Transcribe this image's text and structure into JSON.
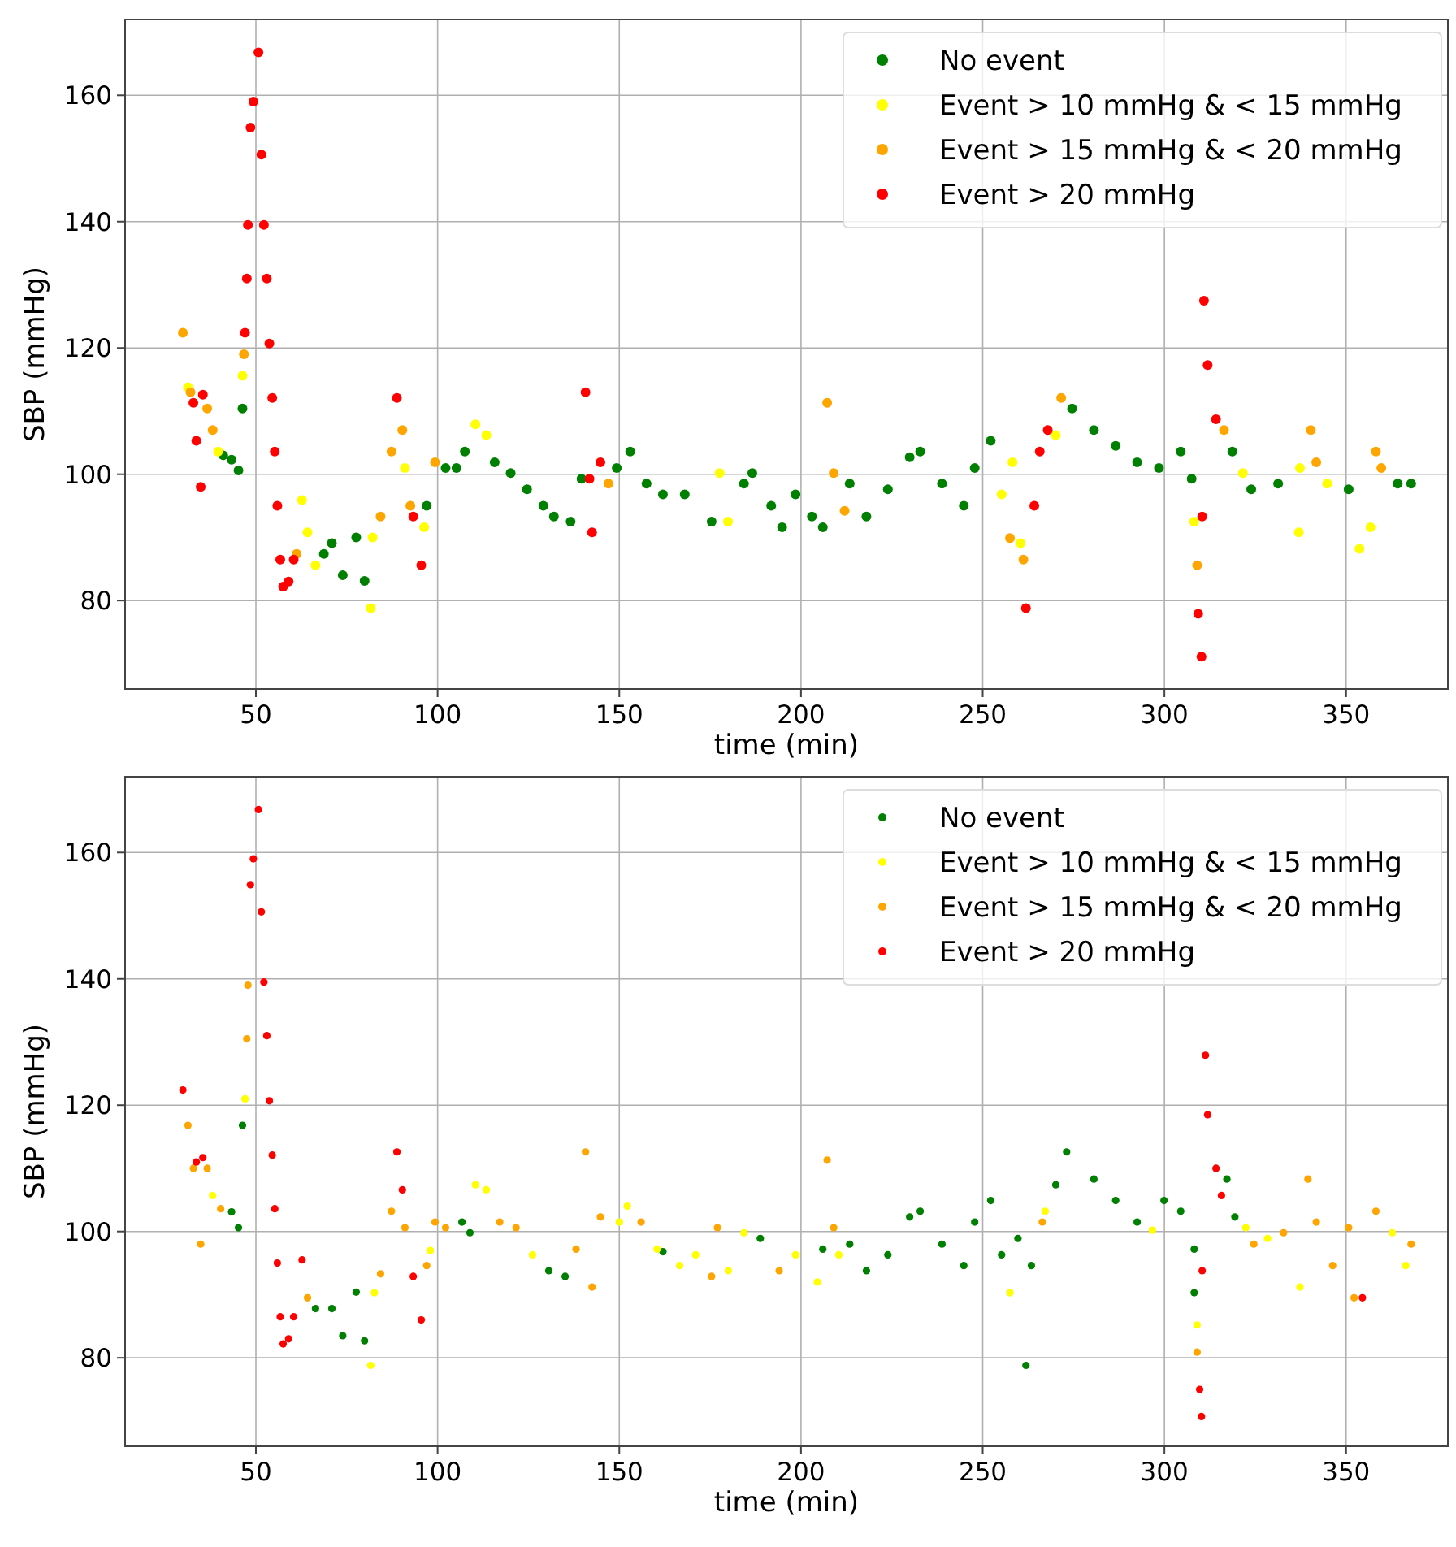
{
  "chart_data": [
    {
      "type": "scatter",
      "xlabel": "time (min)",
      "ylabel": "SBP (mmHg)",
      "xlim": [
        14,
        378
      ],
      "ylim": [
        66,
        172
      ],
      "xticks": [
        50,
        100,
        150,
        200,
        250,
        300,
        350
      ],
      "yticks": [
        80,
        100,
        120,
        140,
        160
      ],
      "grid": true,
      "legend": "top right",
      "marker": "circle",
      "series": [
        {
          "name": "No event",
          "color": "#008000",
          "x": [
            41,
            43.3,
            45.2,
            46.3,
            68.7,
            70.9,
            73.9,
            77.6,
            79.9,
            97,
            102.2,
            105.2,
            107.5,
            115.7,
            120.1,
            124.6,
            129.1,
            132,
            136.6,
            139.6,
            149.3,
            153,
            157.5,
            162,
            168,
            175.4,
            184.3,
            186.6,
            191.8,
            194.8,
            198.5,
            203,
            206,
            213.4,
            218,
            223.9,
            229.9,
            232.8,
            238.8,
            244.8,
            247.8,
            252.2,
            274.6,
            280.6,
            286.6,
            292.5,
            298.5,
            304.5,
            307.5,
            318.7,
            323.9,
            331.3,
            350.7,
            364.2,
            367.9
          ],
          "values": [
            103,
            102.3,
            100.6,
            110.4,
            87.4,
            89.1,
            84,
            90,
            83.1,
            95,
            101,
            101,
            103.6,
            101.9,
            100.2,
            97.6,
            95,
            93.3,
            92.5,
            99.3,
            101,
            103.6,
            98.5,
            96.8,
            96.8,
            92.5,
            98.5,
            100.2,
            95,
            91.6,
            96.8,
            93.3,
            91.6,
            98.5,
            93.3,
            97.6,
            102.7,
            103.6,
            98.5,
            95,
            101,
            105.3,
            110.4,
            107,
            104.5,
            101.9,
            101,
            103.6,
            99.3,
            103.6,
            97.6,
            98.5,
            97.6,
            98.5,
            98.5
          ]
        },
        {
          "name": "Event > 10 mmHg & < 15 mmHg",
          "color": "#ffff00",
          "x": [
            31.3,
            39.6,
            46.3,
            62.7,
            64.2,
            66.4,
            81.6,
            82.1,
            91,
            96.3,
            110.4,
            113.4,
            177.6,
            179.9,
            255.2,
            258.2,
            260.4,
            270.1,
            308.2,
            321.6,
            337.3,
            337,
            344.8,
            353.7,
            356.7
          ],
          "values": [
            113.8,
            103.6,
            115.6,
            95.9,
            90.8,
            85.6,
            78.8,
            90,
            101,
            91.6,
            107.9,
            106.2,
            100.2,
            92.5,
            96.8,
            101.9,
            89.1,
            106.2,
            92.5,
            100.2,
            101,
            90.8,
            98.5,
            88.2,
            91.6
          ]
        },
        {
          "name": "Event > 15 mmHg & < 20 mmHg",
          "color": "#ffa500",
          "x": [
            29.9,
            32,
            36.6,
            38.1,
            46.7,
            61.2,
            84.3,
            87.3,
            90.3,
            92.5,
            99.3,
            147,
            207.2,
            209,
            212,
            257.5,
            261.2,
            271.6,
            309,
            316.4,
            340.3,
            341.8,
            358.2,
            359.7
          ],
          "values": [
            122.4,
            113,
            110.4,
            107,
            119,
            87.4,
            93.3,
            103.6,
            107,
            95,
            101.9,
            98.5,
            111.3,
            100.2,
            94.2,
            89.9,
            86.5,
            112.1,
            85.6,
            107,
            107,
            101.9,
            103.6,
            101
          ]
        },
        {
          "name": "Event > 20 mmHg",
          "color": "#ff0000",
          "x": [
            32.8,
            33.6,
            34.8,
            35.4,
            47,
            47.5,
            47.8,
            48.5,
            49.3,
            50.7,
            51.5,
            52.2,
            53,
            53.7,
            54.5,
            55.2,
            55.9,
            56.7,
            57.5,
            59,
            60.4,
            88.8,
            93.3,
            95.5,
            140.7,
            141.8,
            142.5,
            144.8,
            261.9,
            264.2,
            265.7,
            267.9,
            309.3,
            310.2,
            310.4,
            310.9,
            311.9,
            314.2
          ],
          "values": [
            111.3,
            105.3,
            98,
            112.6,
            122.4,
            131,
            139.5,
            154.9,
            159,
            166.8,
            150.6,
            139.5,
            131,
            120.7,
            112.1,
            103.6,
            95,
            86.5,
            82.2,
            83,
            86.5,
            112.1,
            93.3,
            85.6,
            113,
            99.3,
            90.8,
            101.9,
            78.8,
            95,
            103.6,
            107,
            77.9,
            71.1,
            93.3,
            127.5,
            117.3,
            108.7
          ]
        }
      ]
    },
    {
      "type": "scatter",
      "xlabel": "time (min)",
      "ylabel": "SBP (mmHg)",
      "xlim": [
        14,
        378
      ],
      "ylim": [
        66,
        172
      ],
      "xticks": [
        50,
        100,
        150,
        200,
        250,
        300,
        350
      ],
      "yticks": [
        80,
        100,
        120,
        140,
        160
      ],
      "grid": true,
      "legend": "top right",
      "marker": "circle",
      "series": [
        {
          "name": "No event",
          "color": "#008000",
          "x": [
            43.3,
            45.2,
            46.3,
            66.4,
            70.9,
            73.9,
            77.6,
            79.9,
            106.7,
            108.9,
            130.6,
            135.1,
            162,
            188.8,
            206,
            213.4,
            218,
            223.9,
            229.9,
            232.8,
            238.8,
            244.8,
            247.8,
            252.2,
            255.2,
            259.7,
            261.9,
            263.4,
            270.1,
            273.1,
            280.6,
            286.6,
            292.5,
            299.9,
            304.5,
            308.2,
            308.2,
            317.2,
            319.4
          ],
          "values": [
            103.1,
            100.6,
            116.8,
            87.8,
            87.8,
            83.5,
            90.4,
            82.7,
            101.5,
            99.8,
            93.8,
            92.9,
            96.8,
            98.9,
            97.2,
            98,
            93.8,
            96.3,
            102.3,
            103.2,
            98,
            94.6,
            101.5,
            104.9,
            96.3,
            98.9,
            78.8,
            94.6,
            107.4,
            112.6,
            108.3,
            104.9,
            101.5,
            104.9,
            103.2,
            97.2,
            90.3,
            108.3,
            102.3
          ]
        },
        {
          "name": "Event > 10 mmHg & < 15 mmHg",
          "color": "#ffff00",
          "x": [
            38.1,
            47,
            81.6,
            82.6,
            98,
            110.4,
            113.4,
            126.1,
            150,
            152.2,
            160.4,
            166.6,
            171,
            180,
            184.3,
            198.5,
            204.5,
            210.4,
            257.5,
            267.2,
            296.7,
            309,
            322.4,
            328.4,
            337.3,
            362.7,
            366.4
          ],
          "values": [
            105.7,
            121,
            78.8,
            90.3,
            97,
            107.4,
            106.6,
            96.3,
            101.5,
            104,
            97.2,
            94.6,
            96.3,
            93.8,
            99.8,
            96.3,
            92,
            96.3,
            90.3,
            103.2,
            100.2,
            85.2,
            100.6,
            98.9,
            91.2,
            99.8,
            94.6
          ]
        },
        {
          "name": "Event > 15 mmHg & < 20 mmHg",
          "color": "#ffa500",
          "x": [
            31.3,
            32.8,
            34.8,
            36.6,
            40.3,
            47.5,
            47.8,
            64.2,
            84.3,
            87.3,
            91,
            97,
            99.3,
            102.2,
            117.1,
            121.6,
            138.1,
            140.7,
            142.5,
            144.8,
            156,
            175.4,
            177,
            194,
            207.2,
            209,
            266.4,
            309,
            324.6,
            332.8,
            339.5,
            341.8,
            346.3,
            350.7,
            352.2,
            358.2,
            367.9
          ],
          "values": [
            116.8,
            110,
            98,
            110,
            103.6,
            130.5,
            139,
            89.5,
            93.3,
            103.2,
            100.6,
            94.6,
            101.5,
            100.6,
            101.5,
            100.6,
            97.2,
            112.6,
            91.2,
            102.3,
            101.5,
            92.9,
            100.6,
            93.8,
            111.3,
            100.6,
            101.5,
            80.9,
            98,
            99.8,
            108.3,
            101.5,
            94.6,
            100.6,
            89.5,
            103.2,
            98
          ]
        },
        {
          "name": "Event > 20 mmHg",
          "color": "#ff0000",
          "x": [
            29.9,
            33.6,
            35.4,
            48.5,
            49.3,
            50.7,
            51.5,
            52.2,
            53,
            53.7,
            54.5,
            55.2,
            55.9,
            56.7,
            57.5,
            59,
            60.4,
            62.7,
            88.8,
            90.3,
            93.3,
            95.5,
            309.7,
            310.2,
            310.4,
            311.3,
            311.9,
            314.2,
            315.7,
            354.5
          ],
          "values": [
            122.4,
            111,
            111.7,
            154.9,
            159,
            166.8,
            150.6,
            139.5,
            131,
            120.7,
            112.1,
            103.6,
            95,
            86.5,
            82.2,
            83,
            86.5,
            95.5,
            112.6,
            106.6,
            92.9,
            86,
            75,
            70.7,
            93.8,
            127.9,
            118.5,
            110,
            105.7,
            89.5
          ]
        }
      ]
    }
  ]
}
